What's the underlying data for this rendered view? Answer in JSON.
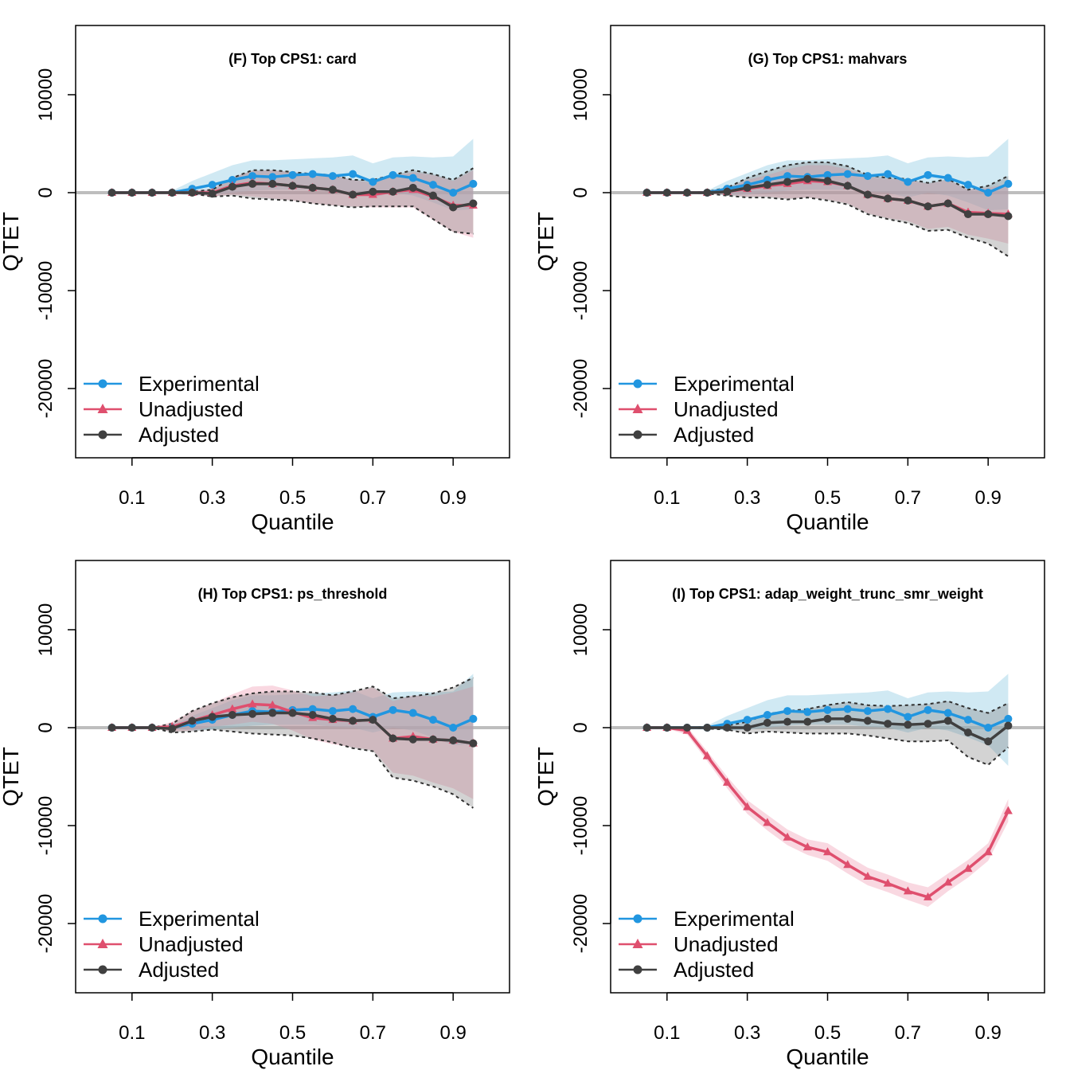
{
  "figure": {
    "colors": {
      "experimental": "#2196e0",
      "unadjusted": "#df4f6e",
      "adjusted": "#404040",
      "experimental_band": "#a9d7ea",
      "unadjusted_band": "#f2a9bd",
      "adjusted_band": "#808080",
      "zero_line": "#bebebe"
    },
    "legend": [
      "Experimental",
      "Unadjusted",
      "Adjusted"
    ]
  },
  "chart_data": [
    {
      "type": "line",
      "title": "(F) Top CPS1: card",
      "xlabel": "Quantile",
      "ylabel": "QTET",
      "x": [
        0.05,
        0.1,
        0.15,
        0.2,
        0.25,
        0.3,
        0.35,
        0.4,
        0.45,
        0.5,
        0.55,
        0.6,
        0.65,
        0.7,
        0.75,
        0.8,
        0.85,
        0.9,
        0.95
      ],
      "x_ticks": [
        "0.1",
        "0.3",
        "0.5",
        "0.7",
        "0.9"
      ],
      "y_ticks": [
        "-20000",
        "-10000",
        "0",
        "10000"
      ],
      "xlim": [
        0.0,
        1.0
      ],
      "ylim": [
        -26500,
        16500
      ],
      "legend_position": "bottom-left",
      "series": [
        {
          "name": "Experimental",
          "marker": "circle",
          "values": [
            0,
            0,
            0,
            0,
            400,
            800,
            1300,
            1700,
            1600,
            1800,
            1900,
            1700,
            1900,
            1100,
            1800,
            1500,
            800,
            0,
            900
          ],
          "ci_low": [
            0,
            0,
            0,
            -100,
            -300,
            -200,
            0,
            200,
            300,
            300,
            300,
            100,
            0,
            -500,
            0,
            -300,
            -1000,
            -1800,
            -1700
          ],
          "ci_high": [
            0,
            0,
            0,
            200,
            1200,
            2000,
            2800,
            3300,
            3300,
            3400,
            3500,
            3600,
            3800,
            3000,
            3600,
            3700,
            3600,
            3700,
            5500
          ]
        },
        {
          "name": "Unadjusted",
          "marker": "triangle",
          "values": [
            0,
            0,
            0,
            0,
            0,
            0,
            700,
            1000,
            900,
            700,
            500,
            300,
            -200,
            -200,
            100,
            300,
            -400,
            -1300,
            -1300
          ],
          "ci_low": [
            0,
            0,
            0,
            0,
            -200,
            -400,
            -200,
            -400,
            -600,
            -800,
            -1100,
            -1300,
            -1400,
            -1500,
            -1500,
            -1500,
            -2800,
            -4000,
            -4600
          ],
          "ci_high": [
            0,
            0,
            0,
            0,
            200,
            400,
            1600,
            2200,
            2300,
            2100,
            1800,
            1800,
            1300,
            1000,
            1700,
            2100,
            1800,
            1200,
            2300
          ]
        },
        {
          "name": "Adjusted",
          "marker": "circle",
          "values": [
            0,
            0,
            0,
            0,
            0,
            -100,
            600,
            900,
            900,
            700,
            500,
            300,
            -200,
            100,
            100,
            500,
            -300,
            -1500,
            -1100
          ],
          "ci_low": [
            0,
            0,
            0,
            0,
            -100,
            -400,
            -300,
            -600,
            -700,
            -800,
            -1100,
            -1300,
            -1500,
            -1400,
            -1400,
            -1400,
            -2700,
            -4000,
            -4200
          ],
          "ci_high": [
            0,
            0,
            0,
            0,
            100,
            300,
            1500,
            2300,
            2300,
            2100,
            1900,
            1800,
            1300,
            1300,
            1800,
            2300,
            1900,
            1300,
            2500
          ]
        }
      ]
    },
    {
      "type": "line",
      "title": "(G) Top CPS1: mahvars",
      "xlabel": "Quantile",
      "ylabel": "QTET",
      "x": [
        0.05,
        0.1,
        0.15,
        0.2,
        0.25,
        0.3,
        0.35,
        0.4,
        0.45,
        0.5,
        0.55,
        0.6,
        0.65,
        0.7,
        0.75,
        0.8,
        0.85,
        0.9,
        0.95
      ],
      "x_ticks": [
        "0.1",
        "0.3",
        "0.5",
        "0.7",
        "0.9"
      ],
      "y_ticks": [
        "-20000",
        "-10000",
        "0",
        "10000"
      ],
      "xlim": [
        0.0,
        1.0
      ],
      "ylim": [
        -26500,
        16500
      ],
      "legend_position": "bottom-left",
      "series": [
        {
          "name": "Experimental",
          "marker": "circle",
          "values": [
            0,
            0,
            0,
            0,
            400,
            800,
            1300,
            1700,
            1600,
            1800,
            1900,
            1700,
            1900,
            1100,
            1800,
            1500,
            800,
            0,
            900
          ],
          "ci_low": [
            0,
            0,
            0,
            -100,
            -300,
            -200,
            0,
            200,
            300,
            300,
            300,
            100,
            0,
            -500,
            0,
            -300,
            -1000,
            -1800,
            -1700
          ],
          "ci_high": [
            0,
            0,
            0,
            200,
            1200,
            2000,
            2800,
            3300,
            3300,
            3400,
            3500,
            3600,
            3800,
            3000,
            3600,
            3700,
            3600,
            3700,
            5500
          ]
        },
        {
          "name": "Unadjusted",
          "marker": "triangle",
          "values": [
            0,
            0,
            0,
            0,
            100,
            400,
            700,
            900,
            1200,
            1100,
            700,
            -200,
            -600,
            -800,
            -1400,
            -1100,
            -2000,
            -2100,
            -2200
          ],
          "ci_low": [
            0,
            0,
            0,
            -100,
            -200,
            -400,
            -400,
            -600,
            -500,
            -700,
            -1100,
            -2100,
            -2600,
            -2900,
            -3700,
            -3500,
            -4300,
            -4700,
            -5200
          ],
          "ci_high": [
            0,
            0,
            0,
            100,
            400,
            1300,
            1800,
            2400,
            2800,
            2800,
            2400,
            1600,
            1400,
            1300,
            900,
            1300,
            300,
            500,
            900
          ]
        },
        {
          "name": "Adjusted",
          "marker": "circle",
          "values": [
            0,
            0,
            0,
            0,
            100,
            500,
            800,
            1100,
            1400,
            1200,
            700,
            -200,
            -600,
            -800,
            -1400,
            -1100,
            -2200,
            -2200,
            -2400
          ],
          "ci_low": [
            0,
            0,
            0,
            -100,
            -300,
            -500,
            -500,
            -700,
            -500,
            -800,
            -1200,
            -2200,
            -2700,
            -3100,
            -3900,
            -3800,
            -4600,
            -5200,
            -6500
          ],
          "ci_high": [
            0,
            0,
            0,
            100,
            500,
            1500,
            2200,
            2800,
            3100,
            3100,
            2700,
            1800,
            1500,
            1400,
            1000,
            1400,
            300,
            700,
            1700
          ]
        }
      ]
    },
    {
      "type": "line",
      "title": "(H) Top CPS1: ps_threshold",
      "xlabel": "Quantile",
      "ylabel": "QTET",
      "x": [
        0.05,
        0.1,
        0.15,
        0.2,
        0.25,
        0.3,
        0.35,
        0.4,
        0.45,
        0.5,
        0.55,
        0.6,
        0.65,
        0.7,
        0.75,
        0.8,
        0.85,
        0.9,
        0.95
      ],
      "x_ticks": [
        "0.1",
        "0.3",
        "0.5",
        "0.7",
        "0.9"
      ],
      "y_ticks": [
        "-20000",
        "-10000",
        "0",
        "10000"
      ],
      "xlim": [
        0.0,
        1.0
      ],
      "ylim": [
        -26500,
        16500
      ],
      "legend_position": "bottom-left",
      "series": [
        {
          "name": "Experimental",
          "marker": "circle",
          "values": [
            0,
            0,
            0,
            0,
            400,
            800,
            1300,
            1700,
            1600,
            1800,
            1900,
            1700,
            1900,
            1100,
            1800,
            1500,
            800,
            0,
            900
          ],
          "ci_low": [
            0,
            0,
            0,
            -100,
            -300,
            -200,
            0,
            200,
            300,
            300,
            300,
            100,
            0,
            -500,
            0,
            -300,
            -1000,
            -1800,
            -1700
          ],
          "ci_high": [
            0,
            0,
            0,
            200,
            1200,
            2000,
            2800,
            3300,
            3300,
            3400,
            3500,
            3600,
            3800,
            3000,
            3600,
            3700,
            3600,
            3700,
            5500
          ]
        },
        {
          "name": "Unadjusted",
          "marker": "triangle",
          "values": [
            0,
            0,
            0,
            100,
            700,
            1300,
            1900,
            2400,
            2300,
            1600,
            1000,
            800,
            700,
            800,
            -1100,
            -900,
            -1200,
            -1300,
            -1600
          ],
          "ci_low": [
            0,
            0,
            0,
            -400,
            -300,
            100,
            300,
            600,
            400,
            -300,
            -1200,
            -1700,
            -2000,
            -2300,
            -4600,
            -4900,
            -5600,
            -6200,
            -7300
          ],
          "ci_high": [
            0,
            0,
            0,
            600,
            1700,
            2500,
            3400,
            4200,
            4300,
            3800,
            3200,
            3300,
            3600,
            4100,
            2700,
            3300,
            3200,
            3600,
            4200
          ]
        },
        {
          "name": "Adjusted",
          "marker": "circle",
          "values": [
            0,
            0,
            0,
            -100,
            700,
            1100,
            1300,
            1400,
            1500,
            1500,
            1300,
            900,
            700,
            800,
            -1100,
            -1200,
            -1200,
            -1300,
            -1600
          ],
          "ci_low": [
            0,
            0,
            0,
            -500,
            -400,
            -200,
            -400,
            -600,
            -700,
            -800,
            -1100,
            -1500,
            -2100,
            -2400,
            -5100,
            -5400,
            -6000,
            -6800,
            -8200
          ],
          "ci_high": [
            0,
            0,
            0,
            400,
            1700,
            2500,
            3100,
            3500,
            3700,
            3700,
            3600,
            3300,
            3700,
            4200,
            3000,
            3200,
            3500,
            4100,
            5100
          ]
        }
      ]
    },
    {
      "type": "line",
      "title": "(I) Top CPS1: adap_weight_trunc_smr_weight",
      "xlabel": "Quantile",
      "ylabel": "QTET",
      "x": [
        0.05,
        0.1,
        0.15,
        0.2,
        0.25,
        0.3,
        0.35,
        0.4,
        0.45,
        0.5,
        0.55,
        0.6,
        0.65,
        0.7,
        0.75,
        0.8,
        0.85,
        0.9,
        0.95
      ],
      "x_ticks": [
        "0.1",
        "0.3",
        "0.5",
        "0.7",
        "0.9"
      ],
      "y_ticks": [
        "-20000",
        "-10000",
        "0",
        "10000"
      ],
      "xlim": [
        0.0,
        1.0
      ],
      "ylim": [
        -26500,
        16500
      ],
      "legend_position": "bottom-left",
      "series": [
        {
          "name": "Experimental",
          "marker": "circle",
          "values": [
            0,
            0,
            0,
            0,
            400,
            800,
            1300,
            1700,
            1600,
            1800,
            1900,
            1700,
            1900,
            1100,
            1800,
            1500,
            800,
            0,
            900
          ],
          "ci_low": [
            0,
            0,
            0,
            -100,
            -300,
            -200,
            0,
            200,
            300,
            300,
            300,
            100,
            0,
            -500,
            0,
            -300,
            -1000,
            -1800,
            -3900
          ],
          "ci_high": [
            0,
            0,
            0,
            200,
            1200,
            2000,
            2800,
            3300,
            3300,
            3400,
            3500,
            3600,
            3800,
            3000,
            3600,
            3700,
            3600,
            3700,
            5500
          ]
        },
        {
          "name": "Unadjusted",
          "marker": "triangle",
          "values": [
            0,
            0,
            -300,
            -2900,
            -5600,
            -8100,
            -9700,
            -11200,
            -12200,
            -12700,
            -14000,
            -15200,
            -15900,
            -16700,
            -17300,
            -15800,
            -14400,
            -12700,
            -8500
          ],
          "ci_low": [
            0,
            -100,
            -700,
            -3400,
            -6200,
            -8800,
            -10500,
            -12000,
            -13000,
            -13600,
            -14900,
            -16100,
            -16800,
            -17600,
            -18300,
            -16700,
            -15300,
            -13600,
            -9600
          ],
          "ci_high": [
            0,
            100,
            100,
            -2400,
            -5000,
            -7400,
            -8900,
            -10400,
            -11400,
            -11800,
            -13100,
            -14300,
            -15000,
            -15800,
            -16300,
            -14900,
            -13500,
            -11800,
            -7300
          ]
        },
        {
          "name": "Adjusted",
          "marker": "circle",
          "values": [
            0,
            0,
            0,
            0,
            0,
            0,
            500,
            600,
            600,
            900,
            900,
            700,
            400,
            300,
            400,
            700,
            -500,
            -1400,
            200
          ],
          "ci_low": [
            0,
            0,
            0,
            -100,
            -200,
            -600,
            -400,
            -500,
            -600,
            -600,
            -600,
            -800,
            -1100,
            -1400,
            -1400,
            -1300,
            -3000,
            -3800,
            -2000
          ],
          "ci_high": [
            0,
            0,
            0,
            100,
            200,
            600,
            1400,
            1700,
            1900,
            2300,
            2600,
            2300,
            2200,
            2300,
            2400,
            2700,
            2000,
            1500,
            2500
          ]
        }
      ]
    }
  ]
}
